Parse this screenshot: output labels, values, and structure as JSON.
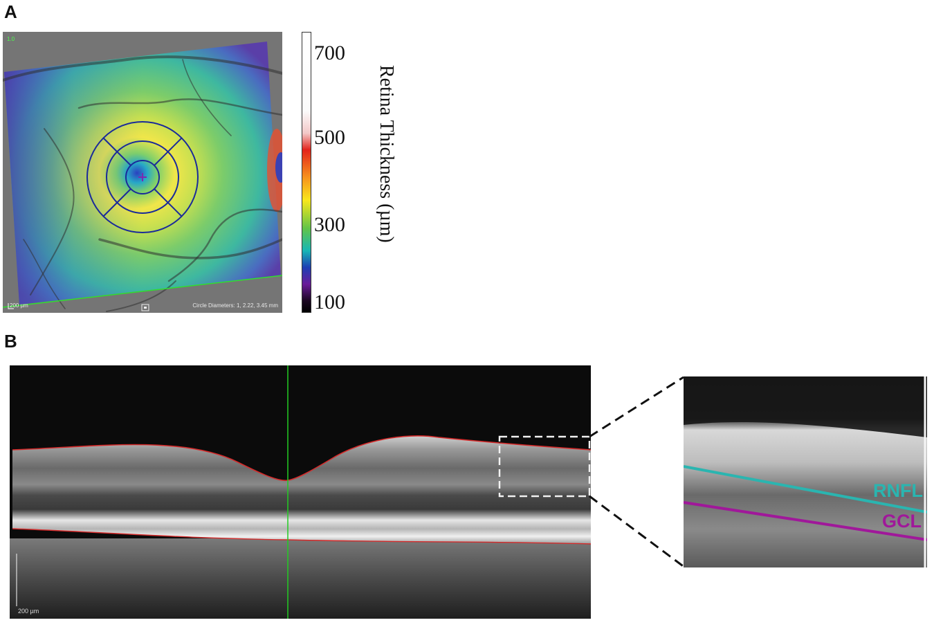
{
  "figure": {
    "panel_a_label": "A",
    "panel_b_label": "B"
  },
  "thickness_map": {
    "scale_bar_text": "200 µm",
    "circle_diameters_text": "Circle Diameters: 1, 2.22, 3.45 mm",
    "corner_text": "1.0"
  },
  "colorbar": {
    "title": "Retina Thickness (µm)",
    "ticks": [
      "700",
      "500",
      "300",
      "100"
    ],
    "colors": [
      "#ffffff",
      "#e3231b",
      "#f7941d",
      "#f8e71c",
      "#62c447",
      "#18b7b5",
      "#1e3fb4",
      "#6a1b9a",
      "#000000"
    ]
  },
  "oct_scan": {
    "scale_bar_text": "200 µm",
    "boundary_color": "#d42a2a",
    "cursor_line_color": "#22cc22"
  },
  "zoom": {
    "layers": [
      {
        "name": "RNFL",
        "color": "#2ab5b0"
      },
      {
        "name": "GCL",
        "color": "#a0189a"
      }
    ]
  }
}
